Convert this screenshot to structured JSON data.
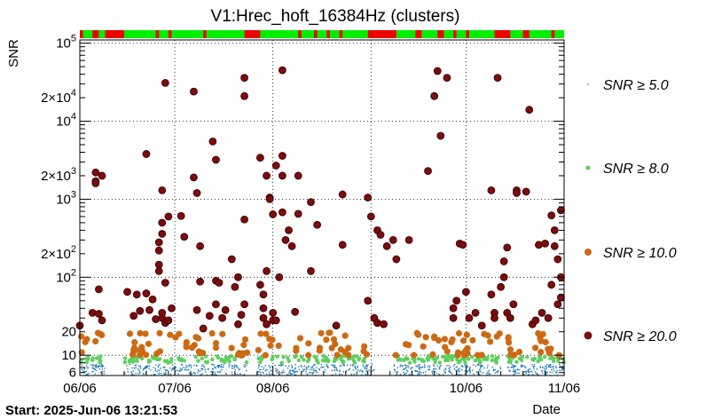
{
  "chart_data": {
    "type": "scatter",
    "title": "V1:Hrec_hoft_16384Hz (clusters)",
    "xlabel": "Date",
    "ylabel": "SNR",
    "yscale": "log",
    "ylim": [
      5.5,
      110000
    ],
    "x_start": "2025-06-06",
    "x_end": "2025-11-06",
    "x_ticks": [
      "06/06",
      "07/06",
      "08/06",
      "10/06",
      "11/06"
    ],
    "x_tick_dates": [
      "2025-06-06",
      "2025-07-06",
      "2025-08-06",
      "2025-10-06",
      "2025-11-06"
    ],
    "x_grid_dates": [
      "2025-06-06",
      "2025-07-06",
      "2025-08-06",
      "2025-09-06",
      "2025-10-06",
      "2025-11-06"
    ],
    "y_ticks": [
      {
        "value": 6,
        "label": "6"
      },
      {
        "value": 10,
        "label": "10"
      },
      {
        "value": 20,
        "label": "20"
      },
      {
        "value": 100,
        "label": "10^2"
      },
      {
        "value": 200,
        "label": "2×10^2"
      },
      {
        "value": 1000,
        "label": "10^3"
      },
      {
        "value": 2000,
        "label": "2×10^3"
      },
      {
        "value": 10000,
        "label": "10^4"
      },
      {
        "value": 20000,
        "label": "2×10^4"
      },
      {
        "value": 100000,
        "label": "10^5"
      }
    ],
    "grid": true,
    "legend_position": "right",
    "footer": "Start: 2025-Jun-06 13:21:53",
    "series": [
      {
        "name": "SNR ≥ 5.0",
        "color": "#1f77b4",
        "marker": "dot",
        "threshold": 5.0
      },
      {
        "name": "SNR ≥ 8.0",
        "color": "#5ecf5e",
        "marker": "small-circle",
        "threshold": 8.0
      },
      {
        "name": "SNR ≥ 10.0",
        "color": "#cc6a14",
        "marker": "circle",
        "threshold": 10.0
      },
      {
        "name": "SNR ≥ 20.0",
        "color": "#7a0d0d",
        "marker": "large-circle",
        "threshold": 20.0
      }
    ],
    "high_snr_points": [
      [
        "2025-06-06",
        24
      ],
      [
        "2025-06-10",
        35
      ],
      [
        "2025-06-11",
        2200
      ],
      [
        "2025-06-11",
        1700
      ],
      [
        "2025-06-11",
        1600
      ],
      [
        "2025-06-12",
        34
      ],
      [
        "2025-06-12",
        70
      ],
      [
        "2025-06-13",
        2000
      ],
      [
        "2025-06-13",
        28
      ],
      [
        "2025-06-21",
        65
      ],
      [
        "2025-06-23",
        32
      ],
      [
        "2025-06-24",
        60
      ],
      [
        "2025-06-25",
        37
      ],
      [
        "2025-06-27",
        3800
      ],
      [
        "2025-06-27",
        62
      ],
      [
        "2025-06-28",
        38
      ],
      [
        "2025-06-29",
        52
      ],
      [
        "2025-06-30",
        29
      ],
      [
        "2025-07-01",
        280
      ],
      [
        "2025-07-01",
        220
      ],
      [
        "2025-07-01",
        145
      ],
      [
        "2025-07-01",
        120
      ],
      [
        "2025-07-02",
        360
      ],
      [
        "2025-07-02",
        500
      ],
      [
        "2025-07-02",
        1300
      ],
      [
        "2025-07-02",
        35
      ],
      [
        "2025-07-02",
        30
      ],
      [
        "2025-07-03",
        26
      ],
      [
        "2025-07-03",
        85
      ],
      [
        "2025-07-03",
        31000
      ],
      [
        "2025-07-04",
        600
      ],
      [
        "2025-07-04",
        28
      ],
      [
        "2025-07-05",
        40
      ],
      [
        "2025-07-08",
        610
      ],
      [
        "2025-07-09",
        330
      ],
      [
        "2025-07-12",
        24000
      ],
      [
        "2025-07-12",
        1900
      ],
      [
        "2025-07-13",
        1200
      ],
      [
        "2025-07-13",
        38
      ],
      [
        "2025-07-14",
        250
      ],
      [
        "2025-07-14",
        88
      ],
      [
        "2025-07-15",
        22
      ],
      [
        "2025-07-17",
        32
      ],
      [
        "2025-07-18",
        5500
      ],
      [
        "2025-07-19",
        3200
      ],
      [
        "2025-07-19",
        90
      ],
      [
        "2025-07-19",
        45
      ],
      [
        "2025-07-20",
        85
      ],
      [
        "2025-07-21",
        30
      ],
      [
        "2025-07-22",
        38
      ],
      [
        "2025-07-24",
        170
      ],
      [
        "2025-07-25",
        75
      ],
      [
        "2025-07-26",
        100
      ],
      [
        "2025-07-26",
        25
      ],
      [
        "2025-07-27",
        33
      ],
      [
        "2025-07-28",
        36000
      ],
      [
        "2025-07-28",
        21000
      ],
      [
        "2025-07-28",
        550
      ],
      [
        "2025-07-28",
        45
      ],
      [
        "2025-08-02",
        3400
      ],
      [
        "2025-08-02",
        80
      ],
      [
        "2025-08-03",
        60
      ],
      [
        "2025-08-03",
        40
      ],
      [
        "2025-08-03",
        30
      ],
      [
        "2025-08-04",
        2000
      ],
      [
        "2025-08-04",
        120
      ],
      [
        "2025-08-04",
        25
      ],
      [
        "2025-08-05",
        1050
      ],
      [
        "2025-08-05",
        1000
      ],
      [
        "2025-08-06",
        640
      ],
      [
        "2025-08-06",
        35
      ],
      [
        "2025-08-06",
        28
      ],
      [
        "2025-08-07",
        2700
      ],
      [
        "2025-08-07",
        28
      ],
      [
        "2025-08-08",
        100
      ],
      [
        "2025-08-09",
        2000
      ],
      [
        "2025-08-09",
        45000
      ],
      [
        "2025-08-09",
        3600
      ],
      [
        "2025-08-09",
        680
      ],
      [
        "2025-08-10",
        300
      ],
      [
        "2025-08-11",
        400
      ],
      [
        "2025-08-12",
        250
      ],
      [
        "2025-08-13",
        36
      ],
      [
        "2025-08-14",
        2000
      ],
      [
        "2025-08-14",
        650
      ],
      [
        "2025-08-18",
        120
      ],
      [
        "2025-08-18",
        920
      ],
      [
        "2025-08-20",
        470
      ],
      [
        "2025-08-26",
        24
      ],
      [
        "2025-08-28",
        1150
      ],
      [
        "2025-08-28",
        260
      ],
      [
        "2025-09-05",
        1050
      ],
      [
        "2025-09-05",
        50
      ],
      [
        "2025-09-06",
        600
      ],
      [
        "2025-09-07",
        30
      ],
      [
        "2025-09-08",
        400
      ],
      [
        "2025-09-08",
        26
      ],
      [
        "2025-09-09",
        350
      ],
      [
        "2025-09-10",
        25
      ],
      [
        "2025-09-11",
        250
      ],
      [
        "2025-09-13",
        300
      ],
      [
        "2025-09-14",
        170
      ],
      [
        "2025-09-18",
        300
      ],
      [
        "2025-09-24",
        2300
      ],
      [
        "2025-09-26",
        21000
      ],
      [
        "2025-09-27",
        44000
      ],
      [
        "2025-09-28",
        6500
      ],
      [
        "2025-09-30",
        36000
      ],
      [
        "2025-10-02",
        40
      ],
      [
        "2025-10-02",
        30
      ],
      [
        "2025-10-03",
        50
      ],
      [
        "2025-10-04",
        270
      ],
      [
        "2025-10-05",
        260
      ],
      [
        "2025-10-06",
        65
      ],
      [
        "2025-10-07",
        30
      ],
      [
        "2025-10-09",
        35
      ],
      [
        "2025-10-11",
        24
      ],
      [
        "2025-10-14",
        1300
      ],
      [
        "2025-10-14",
        60
      ],
      [
        "2025-10-15",
        35
      ],
      [
        "2025-10-15",
        30
      ],
      [
        "2025-10-16",
        36000
      ],
      [
        "2025-10-17",
        75
      ],
      [
        "2025-10-18",
        160
      ],
      [
        "2025-10-18",
        100
      ],
      [
        "2025-10-19",
        35
      ],
      [
        "2025-10-19",
        240
      ],
      [
        "2025-10-20",
        30
      ],
      [
        "2025-10-21",
        45
      ],
      [
        "2025-10-22",
        1300
      ],
      [
        "2025-10-22",
        1200
      ],
      [
        "2025-10-25",
        1250
      ],
      [
        "2025-10-26",
        14000
      ],
      [
        "2025-10-27",
        25
      ],
      [
        "2025-10-28",
        28
      ],
      [
        "2025-10-29",
        260
      ],
      [
        "2025-10-30",
        35
      ],
      [
        "2025-10-31",
        270
      ],
      [
        "2025-11-01",
        30
      ],
      [
        "2025-11-02",
        80
      ],
      [
        "2025-11-02",
        620
      ],
      [
        "2025-11-03",
        400
      ],
      [
        "2025-11-03",
        250
      ],
      [
        "2025-11-04",
        170
      ],
      [
        "2025-11-04",
        45
      ],
      [
        "2025-11-05",
        100
      ],
      [
        "2025-11-05",
        55
      ],
      [
        "2025-11-05",
        720
      ]
    ]
  },
  "state_bar": {
    "up_color": "#00ee00",
    "down_color": "#ee0000",
    "down_segments": [
      [
        "2025-06-06",
        "2025-06-07"
      ],
      [
        "2025-06-10",
        "2025-06-12"
      ],
      [
        "2025-06-14",
        "2025-06-20"
      ],
      [
        "2025-06-30",
        "2025-07-01"
      ],
      [
        "2025-07-04",
        "2025-07-05"
      ],
      [
        "2025-07-15",
        "2025-07-16"
      ],
      [
        "2025-07-28",
        "2025-08-02"
      ],
      [
        "2025-08-14",
        "2025-08-15"
      ],
      [
        "2025-08-19",
        "2025-08-20"
      ],
      [
        "2025-08-23",
        "2025-08-24"
      ],
      [
        "2025-08-27",
        "2025-08-28"
      ],
      [
        "2025-09-05",
        "2025-09-14"
      ],
      [
        "2025-09-20",
        "2025-09-22"
      ],
      [
        "2025-09-27",
        "2025-09-29"
      ],
      [
        "2025-10-02",
        "2025-10-03"
      ],
      [
        "2025-10-06",
        "2025-10-07"
      ],
      [
        "2025-10-15",
        "2025-10-20"
      ],
      [
        "2025-10-24",
        "2025-10-26"
      ],
      [
        "2025-11-02",
        "2025-11-03"
      ]
    ]
  }
}
